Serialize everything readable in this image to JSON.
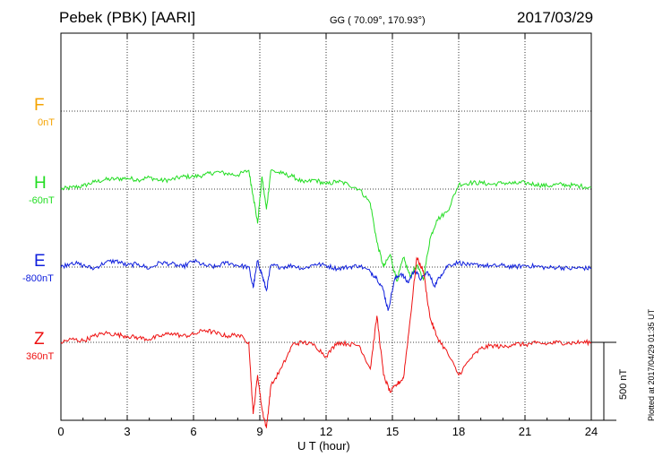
{
  "header": {
    "station": "Pebek (PBK)  [AARI]",
    "coords": "GG ( 70.09°, 170.93°)",
    "date": "2017/03/29"
  },
  "plotted_note": "Plotted at 2017/04/29 01:35 UT",
  "scale_label": "500 nT",
  "components": [
    {
      "name": "F",
      "baseline": "0nT",
      "color": "#f5a300"
    },
    {
      "name": "H",
      "baseline": "-60nT",
      "color": "#22dd22"
    },
    {
      "name": "E",
      "baseline": "-800nT",
      "color": "#1020dd"
    },
    {
      "name": "Z",
      "baseline": "360nT",
      "color": "#ee1111"
    }
  ],
  "chart_data": {
    "type": "line",
    "xlabel": "U T (hour)",
    "xlim": [
      0,
      24
    ],
    "xticks": [
      "0",
      "3",
      "6",
      "9",
      "12",
      "15",
      "18",
      "21",
      "24"
    ],
    "ylabel": "",
    "scale_bar_nT": 500,
    "grid": true,
    "series": [
      {
        "name": "H",
        "color": "#22dd22",
        "x": [
          0,
          0.5,
          1,
          1.5,
          2,
          2.5,
          3,
          3.5,
          4,
          4.5,
          5,
          5.5,
          6,
          6.5,
          7,
          7.5,
          8,
          8.5,
          8.7,
          8.9,
          9.1,
          9.3,
          9.5,
          10,
          10.5,
          11,
          11.5,
          12,
          12.5,
          13,
          13.5,
          14,
          14.3,
          14.6,
          14.9,
          15.2,
          15.5,
          15.8,
          16.1,
          16.4,
          16.7,
          17,
          17.5,
          18,
          18.5,
          19,
          19.5,
          20,
          20.5,
          21,
          21.5,
          22,
          22.5,
          23,
          23.5,
          24
        ],
        "y": [
          -60,
          -50,
          -40,
          -15,
          0,
          5,
          10,
          0,
          15,
          -5,
          0,
          20,
          20,
          30,
          50,
          40,
          30,
          60,
          -100,
          -280,
          20,
          -190,
          60,
          40,
          20,
          -20,
          0,
          -30,
          -10,
          -30,
          -60,
          -150,
          -400,
          -560,
          -480,
          -650,
          -500,
          -620,
          -550,
          -640,
          -380,
          -260,
          -200,
          -30,
          -20,
          -20,
          -30,
          -20,
          -25,
          -20,
          -30,
          -40,
          -30,
          -35,
          -40,
          -50
        ]
      },
      {
        "name": "E",
        "color": "#1020dd",
        "x": [
          0,
          0.5,
          1,
          1.5,
          2,
          2.5,
          3,
          3.5,
          4,
          4.5,
          5,
          5.5,
          6,
          6.5,
          7,
          7.5,
          8,
          8.5,
          8.7,
          8.9,
          9.1,
          9.3,
          9.5,
          10,
          10.5,
          11,
          11.5,
          12,
          12.5,
          13,
          13.5,
          14,
          14.3,
          14.6,
          14.8,
          15.1,
          15.4,
          15.7,
          16,
          16.3,
          16.6,
          16.9,
          17.2,
          17.5,
          18,
          18.5,
          19,
          19.5,
          20,
          20.5,
          21,
          21.5,
          22,
          22.5,
          23,
          23.5,
          24
        ],
        "y": [
          -800,
          -770,
          -790,
          -810,
          -770,
          -760,
          -790,
          -780,
          -810,
          -770,
          -780,
          -800,
          -760,
          -790,
          -800,
          -770,
          -790,
          -800,
          -930,
          -760,
          -850,
          -950,
          -790,
          -800,
          -790,
          -810,
          -780,
          -790,
          -810,
          -800,
          -790,
          -830,
          -870,
          -950,
          -1080,
          -880,
          -840,
          -900,
          -820,
          -880,
          -830,
          -920,
          -850,
          -790,
          -770,
          -790,
          -785,
          -795,
          -790,
          -800,
          -790,
          -795,
          -805,
          -800,
          -810,
          -805,
          -810
        ]
      },
      {
        "name": "Z",
        "color": "#ee1111",
        "x": [
          0,
          0.5,
          1,
          1.5,
          2,
          2.5,
          3,
          3.5,
          4,
          4.5,
          5,
          5.5,
          6,
          6.5,
          7,
          7.5,
          8,
          8.5,
          8.7,
          8.9,
          9.1,
          9.3,
          9.5,
          10,
          10.5,
          11,
          11.5,
          12,
          12.5,
          13,
          13.5,
          14,
          14.3,
          14.6,
          14.9,
          15.2,
          15.5,
          15.8,
          16.1,
          16.4,
          16.7,
          17,
          17.5,
          18,
          18.5,
          19,
          19.5,
          20,
          20.5,
          21,
          21.5,
          22,
          22.5,
          23,
          23.5,
          24
        ],
        "y": [
          360,
          380,
          370,
          400,
          420,
          410,
          400,
          390,
          380,
          400,
          420,
          400,
          410,
          440,
          420,
          400,
          410,
          360,
          -100,
          150,
          -70,
          -190,
          80,
          200,
          350,
          360,
          340,
          270,
          360,
          350,
          340,
          190,
          530,
          150,
          40,
          90,
          130,
          500,
          900,
          820,
          520,
          400,
          290,
          150,
          250,
          320,
          340,
          330,
          350,
          345,
          355,
          350,
          360,
          355,
          360,
          360
        ]
      }
    ]
  }
}
